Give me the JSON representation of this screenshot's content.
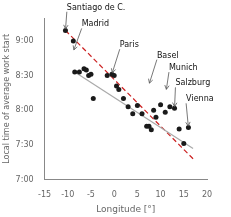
{
  "chart_data": {
    "type": "scatter",
    "xlabel": "Longitude [°]",
    "ylabel": "Local time of average work start",
    "xlim": [
      -15,
      20
    ],
    "ylim": [
      7.0,
      9.33
    ],
    "xticks": [
      -15,
      -10,
      -5,
      0,
      5,
      10,
      15,
      20
    ],
    "yticks": [
      {
        "value": 7.0,
        "label": "7:00"
      },
      {
        "value": 7.5,
        "label": "7:30"
      },
      {
        "value": 8.0,
        "label": "8:00"
      },
      {
        "value": 8.5,
        "label": "8:30"
      },
      {
        "value": 9.0,
        "label": "9:00"
      }
    ],
    "grid": false,
    "series": [
      {
        "type": "scatter",
        "color": "#1a1a1a",
        "marker": "circle",
        "x": [
          -10.5,
          -8.8,
          -8.5,
          -7.5,
          -6.5,
          -6.0,
          -5.5,
          -5.0,
          -4.5,
          -1.5,
          -0.5,
          0.0,
          0.5,
          1.0,
          2.0,
          3.0,
          4.0,
          5.0,
          6.0,
          7.0,
          7.5,
          8.0,
          8.5,
          9.0,
          10.0,
          11.0,
          12.0,
          13.0,
          14.0,
          15.0,
          16.0
        ],
        "values": [
          9.15,
          9.0,
          8.55,
          8.55,
          8.6,
          8.58,
          8.5,
          8.52,
          8.17,
          8.5,
          8.52,
          8.5,
          8.35,
          8.3,
          8.17,
          8.05,
          7.95,
          8.07,
          7.95,
          7.77,
          7.77,
          7.72,
          8.0,
          7.9,
          8.08,
          7.97,
          8.05,
          8.03,
          7.73,
          7.52,
          7.75
        ]
      },
      {
        "type": "line",
        "color": "#aaaaaa",
        "line_style": "solid",
        "x": [
          -8.5,
          17
        ],
        "values": [
          8.55,
          7.45
        ]
      },
      {
        "type": "line",
        "color": "#cc2222",
        "line_style": "dashed",
        "x": [
          -10.5,
          17
        ],
        "values": [
          9.15,
          7.3
        ]
      }
    ],
    "annotations": [
      {
        "text": "Santiago de C.",
        "xy": [
          -10.5,
          9.15
        ],
        "xytext": [
          -10.2,
          9.42
        ]
      },
      {
        "text": "Madrid",
        "xy": [
          -8.8,
          8.85
        ],
        "xytext": [
          -7.0,
          9.18
        ]
      },
      {
        "text": "Paris",
        "xy": [
          -0.5,
          8.52
        ],
        "xytext": [
          1.2,
          8.88
        ]
      },
      {
        "text": "Basel",
        "xy": [
          7.5,
          8.37
        ],
        "xytext": [
          9.2,
          8.73
        ]
      },
      {
        "text": "Munich",
        "xy": [
          11.2,
          8.28
        ],
        "xytext": [
          11.8,
          8.55
        ]
      },
      {
        "text": "Salzburg",
        "xy": [
          13.0,
          8.03
        ],
        "xytext": [
          13.2,
          8.33
        ]
      },
      {
        "text": "Vienna",
        "xy": [
          16.0,
          7.75
        ],
        "xytext": [
          15.5,
          8.1
        ]
      }
    ]
  }
}
